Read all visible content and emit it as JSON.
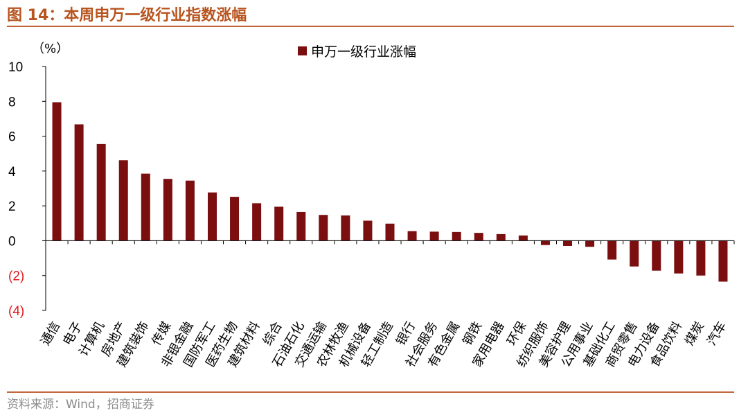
{
  "header": {
    "title": "图 14：本周申万一级行业指数涨幅"
  },
  "footer": {
    "source": "资料来源：Wind，招商证券"
  },
  "chart_data": {
    "type": "bar",
    "unit_label": "（%）",
    "ylim": [
      -4,
      10
    ],
    "yticks": [
      {
        "value": 10,
        "label": "10"
      },
      {
        "value": 8,
        "label": "8"
      },
      {
        "value": 6,
        "label": "6"
      },
      {
        "value": 4,
        "label": "4"
      },
      {
        "value": 2,
        "label": "2"
      },
      {
        "value": 0,
        "label": "0"
      },
      {
        "value": -2,
        "label": "(2)"
      },
      {
        "value": -4,
        "label": "(4)"
      }
    ],
    "categories": [
      "通信",
      "电子",
      "计算机",
      "房地产",
      "建筑装饰",
      "传媒",
      "非银金融",
      "国防军工",
      "医药生物",
      "建筑材料",
      "综合",
      "石油石化",
      "交通运输",
      "农林牧渔",
      "机械设备",
      "轻工制造",
      "银行",
      "社会服务",
      "有色金属",
      "钢铁",
      "家用电器",
      "环保",
      "纺织服饰",
      "美容护理",
      "公用事业",
      "基础化工",
      "商贸零售",
      "电力设备",
      "食品饮料",
      "煤炭",
      "汽车"
    ],
    "series": [
      {
        "name": "申万一级行业涨幅",
        "color": "#7b0e0e",
        "values": [
          7.95,
          6.68,
          5.55,
          4.62,
          3.85,
          3.55,
          3.45,
          2.77,
          2.52,
          2.15,
          1.95,
          1.65,
          1.48,
          1.45,
          1.15,
          0.98,
          0.55,
          0.52,
          0.5,
          0.45,
          0.38,
          0.3,
          -0.25,
          -0.3,
          -0.35,
          -1.08,
          -1.48,
          -1.72,
          -1.88,
          -2.0,
          -2.35
        ]
      }
    ],
    "legend_position": "top-center",
    "grid": false,
    "negative_tick_color": "#e0191d"
  }
}
